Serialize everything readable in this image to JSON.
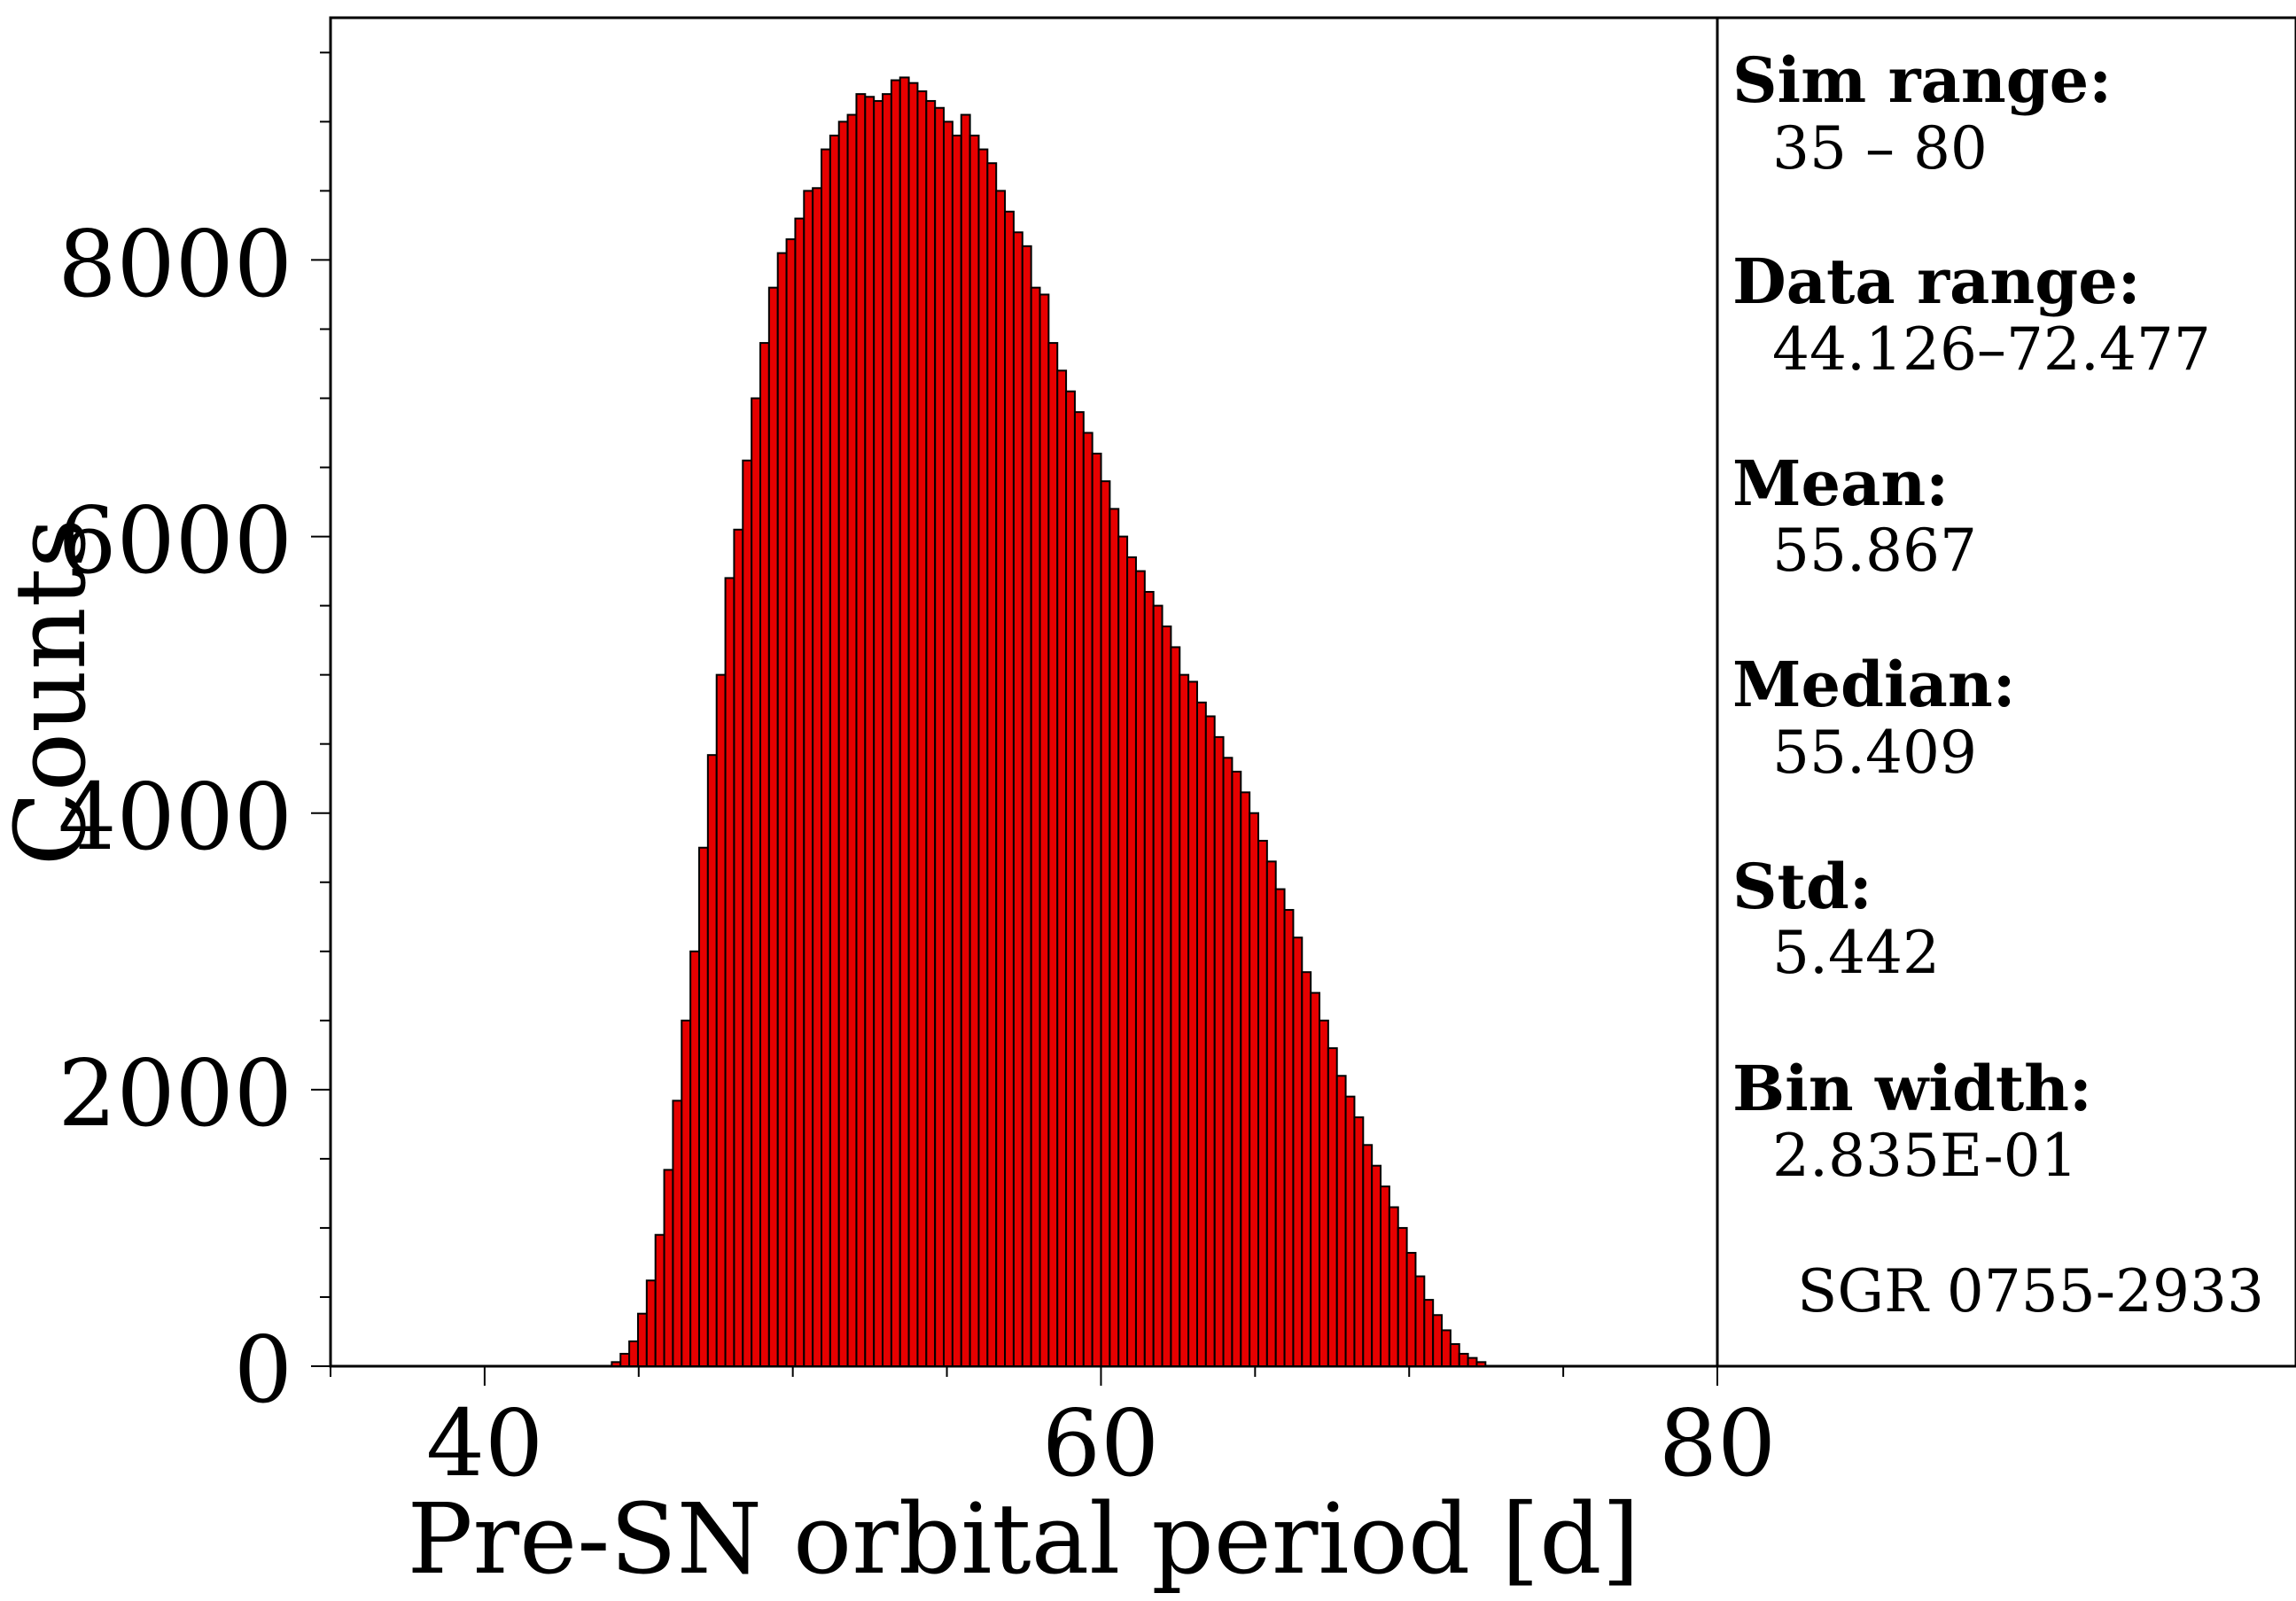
{
  "chart_data": {
    "type": "bar",
    "xlabel": "Pre-SN orbital period [d]",
    "ylabel": "Counts",
    "xlim": [
      35,
      80
    ],
    "ylim": [
      0,
      9800
    ],
    "x_ticks": [
      "40",
      "60",
      "80"
    ],
    "y_ticks": [
      "0",
      "2000",
      "4000",
      "6000",
      "8000"
    ],
    "bar_color": "#e60000",
    "bin_start": 44.126,
    "bin_width": 0.2835,
    "values": [
      30,
      90,
      180,
      380,
      620,
      950,
      1420,
      1920,
      2500,
      3000,
      3750,
      4420,
      5000,
      5700,
      6050,
      6550,
      7000,
      7400,
      7800,
      8050,
      8150,
      8300,
      8500,
      8520,
      8800,
      8900,
      9000,
      9050,
      9200,
      9180,
      9150,
      9200,
      9300,
      9320,
      9280,
      9220,
      9150,
      9100,
      9000,
      8900,
      9050,
      8900,
      8800,
      8700,
      8500,
      8350,
      8200,
      8100,
      7800,
      7750,
      7400,
      7200,
      7050,
      6900,
      6750,
      6600,
      6400,
      6200,
      6000,
      5850,
      5750,
      5600,
      5500,
      5350,
      5200,
      5000,
      4950,
      4800,
      4700,
      4550,
      4400,
      4300,
      4150,
      4000,
      3800,
      3650,
      3450,
      3300,
      3100,
      2850,
      2700,
      2500,
      2300,
      2100,
      1950,
      1800,
      1600,
      1450,
      1300,
      1150,
      1000,
      820,
      650,
      480,
      370,
      260,
      160,
      90,
      60,
      30
    ]
  },
  "stats": {
    "sim_range_label": "Sim range:",
    "sim_range_value": "35 – 80",
    "data_range_label": "Data range:",
    "data_range_value": "44.126–72.477",
    "mean_label": "Mean:",
    "mean_value": "55.867",
    "median_label": "Median:",
    "median_value": "55.409",
    "std_label": "Std:",
    "std_value": "5.442",
    "bin_width_label": "Bin width:",
    "bin_width_value": "2.835E-01",
    "object_name": "SGR 0755-2933"
  }
}
